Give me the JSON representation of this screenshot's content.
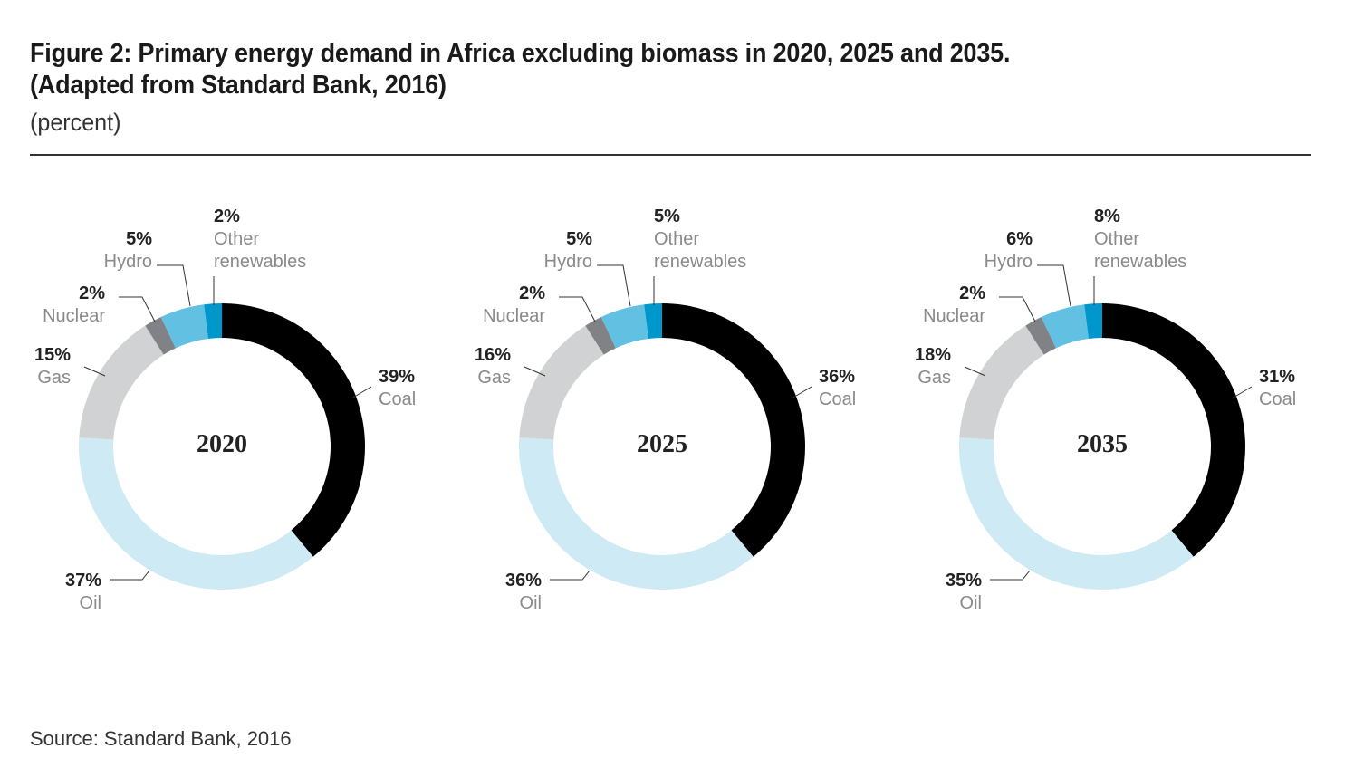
{
  "title_line1": "Figure 2: Primary energy demand in Africa excluding biomass in 2020, 2025 and 2035.",
  "title_line2": "(Adapted from Standard Bank, 2016)",
  "unit": "(percent)",
  "source": "Source: Standard Bank, 2016",
  "colors": {
    "Coal": "#000000",
    "Oil": "#cdeaf5",
    "Gas": "#d1d2d4",
    "Nuclear": "#808285",
    "Hydro": "#62c0e2",
    "Other renewables": "#0098cc"
  },
  "chart_data": [
    {
      "type": "pie",
      "title": "2020",
      "categories": [
        "Coal",
        "Oil",
        "Gas",
        "Nuclear",
        "Hydro",
        "Other renewables"
      ],
      "values": [
        39,
        37,
        15,
        2,
        5,
        2
      ],
      "labels": [
        "39%",
        "37%",
        "15%",
        "2%",
        "5%",
        "2%"
      ]
    },
    {
      "type": "pie",
      "title": "2025",
      "categories": [
        "Coal",
        "Oil",
        "Gas",
        "Nuclear",
        "Hydro",
        "Other renewables"
      ],
      "values": [
        36,
        36,
        16,
        2,
        5,
        5
      ],
      "labels": [
        "36%",
        "36%",
        "16%",
        "2%",
        "5%",
        "5%"
      ]
    },
    {
      "type": "pie",
      "title": "2035",
      "categories": [
        "Coal",
        "Oil",
        "Gas",
        "Nuclear",
        "Hydro",
        "Other renewables"
      ],
      "values": [
        31,
        35,
        18,
        2,
        6,
        8
      ],
      "labels": [
        "31%",
        "35%",
        "18%",
        "2%",
        "6%",
        "8%"
      ]
    }
  ]
}
